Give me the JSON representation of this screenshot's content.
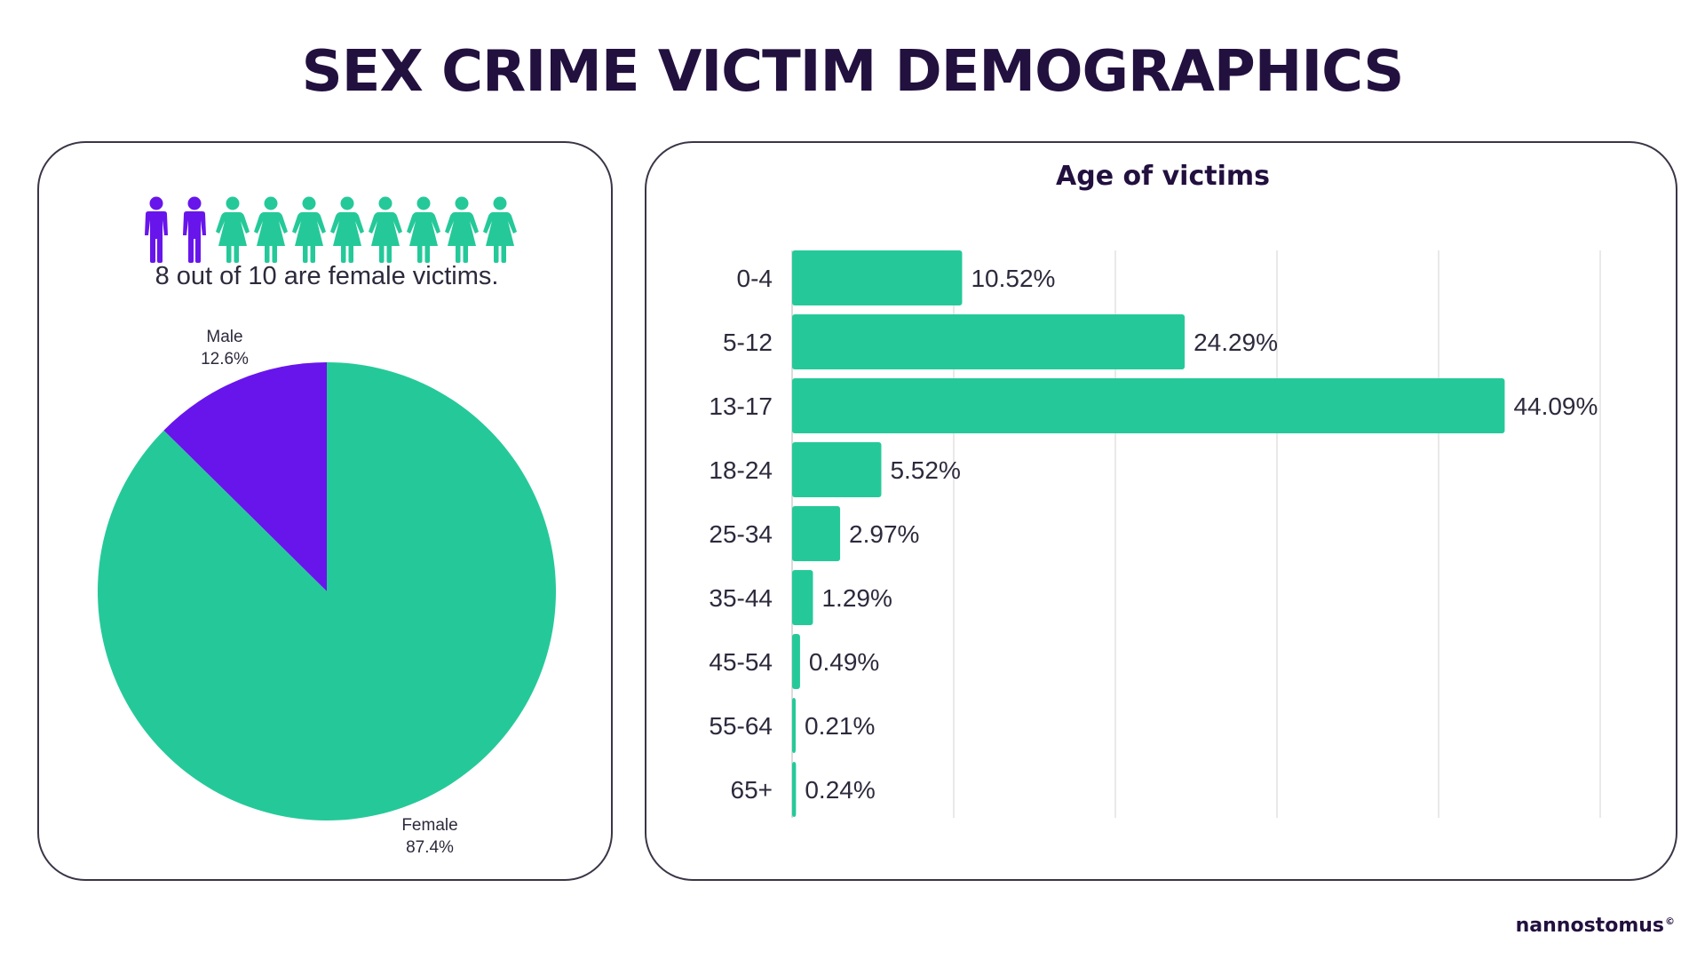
{
  "title": "SEX CRIME VICTIM DEMOGRAPHICS",
  "colors": {
    "accent_green": "#25c999",
    "accent_purple": "#6815ec",
    "title_dark": "#22103f",
    "border": "#3b3546",
    "grid": "#e2e2e2"
  },
  "gender_panel": {
    "people_icons": [
      {
        "type": "male",
        "icon": "male-person-icon"
      },
      {
        "type": "male",
        "icon": "male-person-icon"
      },
      {
        "type": "female",
        "icon": "female-person-icon"
      },
      {
        "type": "female",
        "icon": "female-person-icon"
      },
      {
        "type": "female",
        "icon": "female-person-icon"
      },
      {
        "type": "female",
        "icon": "female-person-icon"
      },
      {
        "type": "female",
        "icon": "female-person-icon"
      },
      {
        "type": "female",
        "icon": "female-person-icon"
      },
      {
        "type": "female",
        "icon": "female-person-icon"
      },
      {
        "type": "female",
        "icon": "female-person-icon"
      }
    ],
    "caption": "8 out of 10 are female victims."
  },
  "age_panel": {
    "title": "Age of victims"
  },
  "logo": {
    "text": "nannostomus",
    "mark": "©"
  },
  "chart_data": [
    {
      "type": "pie",
      "title": "",
      "slices": [
        {
          "label": "Male",
          "value": 12.6,
          "value_label": "12.6%",
          "color": "#6815ec"
        },
        {
          "label": "Female",
          "value": 87.4,
          "value_label": "87.4%",
          "color": "#25c999"
        }
      ],
      "start_angle_deg": 0,
      "direction": "counterclockwise-from-top"
    },
    {
      "type": "bar",
      "orientation": "horizontal",
      "title": "Age of victims",
      "categories": [
        "0-4",
        "5-12",
        "13-17",
        "18-24",
        "25-34",
        "35-44",
        "45-54",
        "55-64",
        "65+"
      ],
      "values": [
        10.52,
        24.29,
        44.09,
        5.52,
        2.97,
        1.29,
        0.49,
        0.21,
        0.24
      ],
      "value_labels": [
        "10.52%",
        "24.29%",
        "44.09%",
        "5.52%",
        "2.97%",
        "1.29%",
        "0.49%",
        "0.21%",
        "0.24%"
      ],
      "xlim": [
        0,
        50
      ],
      "grid": true,
      "gridlines_at": [
        0,
        10,
        20,
        30,
        40,
        50
      ],
      "xlabel": "",
      "ylabel": "",
      "color": "#25c999"
    }
  ]
}
